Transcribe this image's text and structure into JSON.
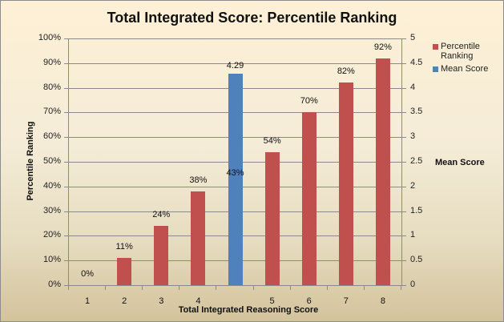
{
  "chart_data": {
    "type": "bar",
    "title": "Total Integrated Score: Percentile Ranking",
    "xlabel": "Total Integrated Reasoning  Score",
    "ylabel": "Percentile Ranking",
    "y2label": "Mean Score",
    "categories": [
      "1",
      "2",
      "3",
      "4",
      "",
      "5",
      "6",
      "7",
      "8"
    ],
    "series": [
      {
        "name": "Percentile Ranking",
        "axis": "left",
        "color": "#c0504d",
        "values": [
          0,
          11,
          24,
          38,
          43,
          54,
          70,
          82,
          92
        ],
        "labels": [
          "0%",
          "11%",
          "24%",
          "38%",
          "43%",
          "54%",
          "70%",
          "82%",
          "92%"
        ]
      },
      {
        "name": "Mean Score",
        "axis": "right",
        "color": "#4f81bd",
        "values": [
          null,
          null,
          null,
          null,
          4.29,
          null,
          null,
          null,
          null
        ],
        "labels": [
          "",
          "",
          "",
          "",
          "4.29",
          "",
          "",
          "",
          ""
        ]
      }
    ],
    "ylim": [
      0,
      100
    ],
    "y2lim": [
      0,
      5
    ],
    "yticks": [
      "0%",
      "10%",
      "20%",
      "30%",
      "40%",
      "50%",
      "60%",
      "70%",
      "80%",
      "90%",
      "100%"
    ],
    "y2ticks": [
      "0",
      "0.5",
      "1",
      "1.5",
      "2",
      "2.5",
      "3",
      "3.5",
      "4",
      "4.5",
      "5"
    ],
    "grid": true,
    "legend_position": "right"
  },
  "legend": {
    "items": [
      {
        "label_line1": "Percentile",
        "label_line2": "Ranking",
        "color": "#c0504d"
      },
      {
        "label_line1": "Mean Score",
        "label_line2": "",
        "color": "#4f81bd"
      }
    ]
  }
}
